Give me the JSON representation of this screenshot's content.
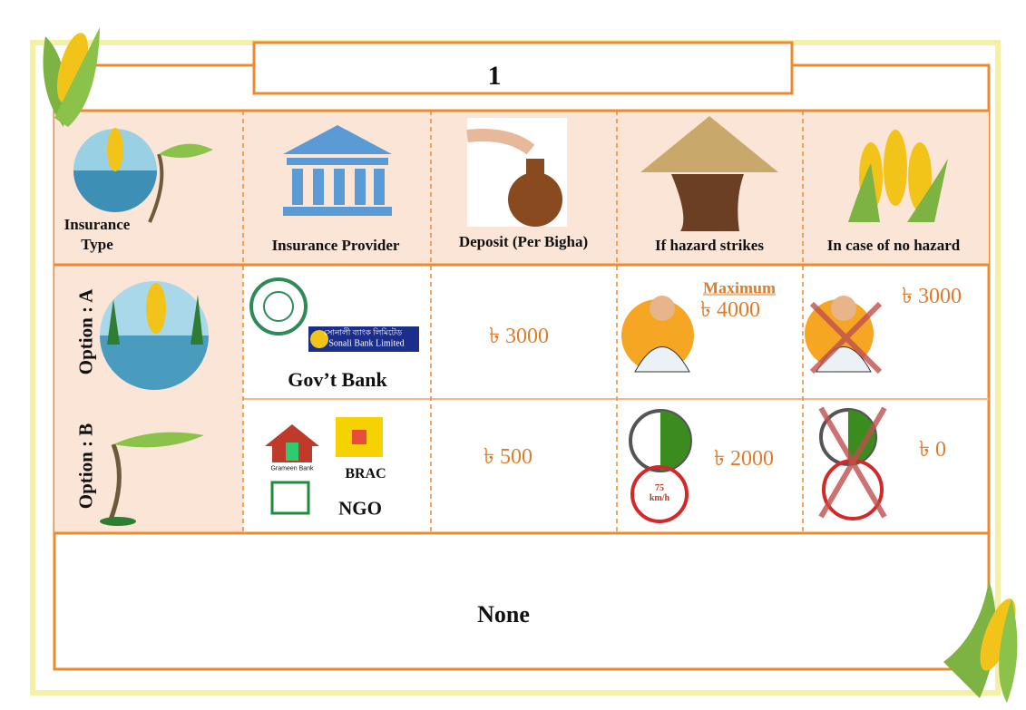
{
  "title": "1",
  "table": {
    "header": [
      "Insurance Type",
      "Insurance Provider",
      "Deposit  (Per Bigha)",
      "If hazard strikes",
      "In case of no hazard"
    ],
    "rows": [
      {
        "option": "Option : A",
        "provider_logos": [
          "সোনালী ব্যাংক লিমিটেড",
          "Sonali Bank Limited"
        ],
        "provider": "Gov’t Bank",
        "deposit": "৳ 3000",
        "hazard_note": "Maximum",
        "hazard": "৳ 4000",
        "no_hazard": "৳ 3000"
      },
      {
        "option": "Option : B",
        "provider_logos": [
          "Grameen Bank",
          "BRAC"
        ],
        "provider": "NGO",
        "deposit": "৳ 500",
        "hazard": "৳ 2000",
        "wind_speed": "75 km/h",
        "no_hazard": "৳ 0"
      }
    ],
    "none": "None"
  }
}
